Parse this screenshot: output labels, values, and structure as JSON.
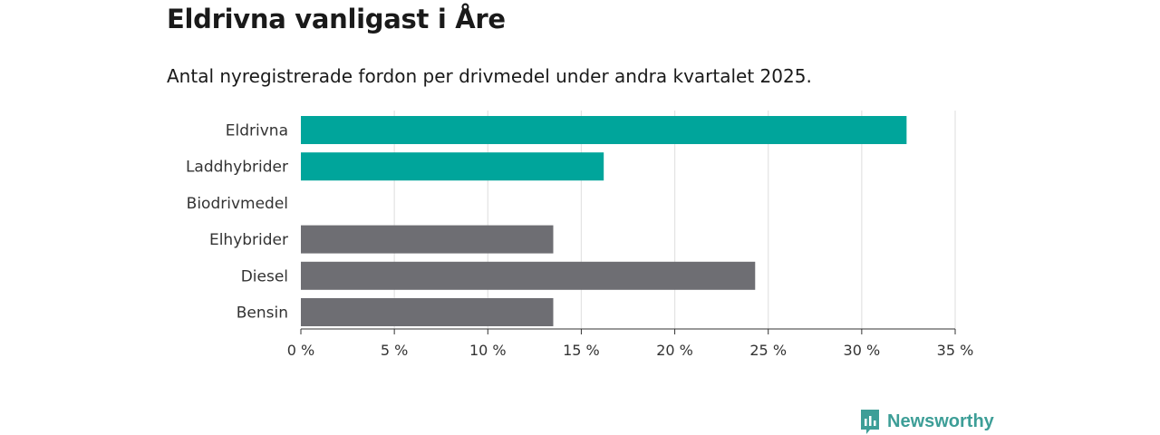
{
  "header": {
    "title": "Eldrivna vanligast i Åre",
    "subtitle": "Antal nyregistrerade fordon per drivmedel under andra kvartalet 2025."
  },
  "brand": {
    "name": "Newsworthy",
    "icon": "bar-chart-speech-bubble-icon",
    "color": "#3d9e97"
  },
  "chart_data": {
    "type": "bar",
    "orientation": "horizontal",
    "title": "Eldrivna vanligast i Åre",
    "subtitle": "Antal nyregistrerade fordon per drivmedel under andra kvartalet 2025.",
    "xlabel": "",
    "ylabel": "",
    "categories": [
      "Eldrivna",
      "Laddhybrider",
      "Biodrivmedel",
      "Elhybrider",
      "Diesel",
      "Bensin"
    ],
    "values": [
      32.4,
      16.2,
      0,
      13.5,
      24.3,
      13.5
    ],
    "colors": [
      "#00a59b",
      "#00a59b",
      "#00a59b",
      "#6e6e73",
      "#6e6e73",
      "#6e6e73"
    ],
    "xlim": [
      0,
      35
    ],
    "ticks": [
      0,
      5,
      10,
      15,
      20,
      25,
      30,
      35
    ],
    "tick_labels": [
      "0 %",
      "5 %",
      "10 %",
      "15 %",
      "20 %",
      "25 %",
      "30 %",
      "35 %"
    ],
    "unit": "%",
    "grid": "vertical",
    "legend": "none"
  }
}
